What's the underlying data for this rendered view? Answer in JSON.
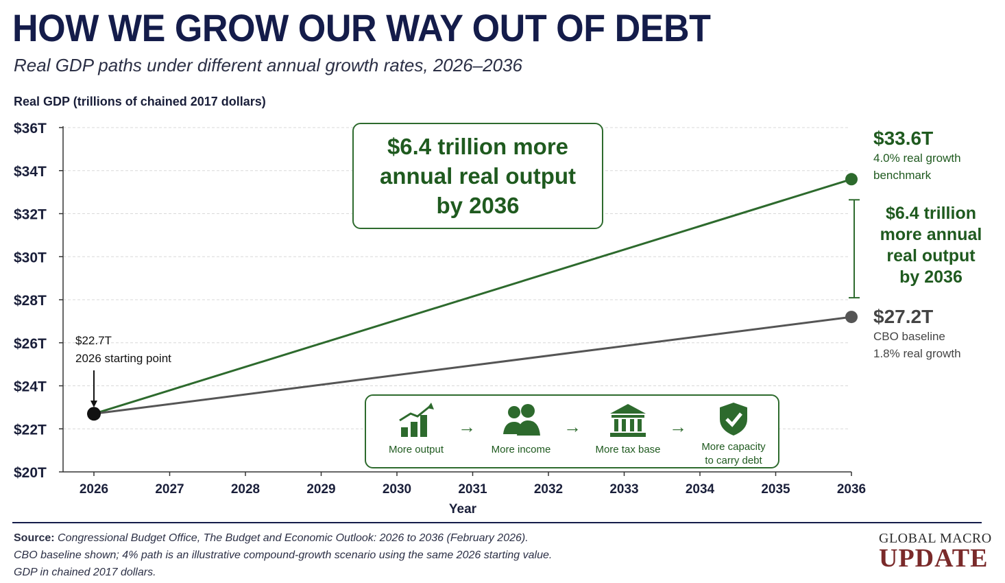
{
  "header": {
    "title": "HOW WE GROW OUR WAY OUT OF DEBT",
    "subtitle": "Real GDP paths under different annual growth rates, 2026–2036"
  },
  "chart_data": {
    "type": "line",
    "title": "HOW WE GROW OUR WAY OUT OF DEBT",
    "subtitle": "Real GDP paths under different annual growth rates, 2026–2036",
    "ylabel": "Real GDP (trillions of chained 2017 dollars)",
    "xlabel": "Year",
    "x": [
      2026,
      2027,
      2028,
      2029,
      2030,
      2031,
      2032,
      2033,
      2034,
      2035,
      2036
    ],
    "xlim": [
      2026,
      2036
    ],
    "ylim": [
      20,
      36
    ],
    "yticks": [
      20,
      22,
      24,
      26,
      28,
      30,
      32,
      34,
      36
    ],
    "ytick_labels": [
      "$20T",
      "$22T",
      "$24T",
      "$26T",
      "$28T",
      "$30T",
      "$32T",
      "$34T",
      "$36T"
    ],
    "grid": true,
    "series": [
      {
        "name": "4.0% real growth benchmark",
        "color": "#2d6a2d",
        "x": [
          2026,
          2036
        ],
        "values": [
          22.7,
          33.6
        ]
      },
      {
        "name": "CBO baseline 1.8% real growth",
        "color": "#555555",
        "x": [
          2026,
          2036
        ],
        "values": [
          22.7,
          27.2
        ]
      }
    ],
    "annotations": {
      "start_value": "$22.7T",
      "start_text": "2026 starting point",
      "green_end_value": "$33.6T",
      "green_end_text_1": "4.0% real growth",
      "green_end_text_2": "benchmark",
      "gray_end_value": "$27.2T",
      "gray_end_text_1": "CBO baseline",
      "gray_end_text_2": "1.8% real growth",
      "gap_lines": [
        "$6.4 trillion",
        "more annual",
        "real output",
        "by 2036"
      ],
      "callout_lines": [
        "$6.4 trillion more",
        "annual real output",
        "by 2036"
      ]
    }
  },
  "flow": {
    "steps": [
      {
        "label": "More output",
        "icon": "bar-chart-up-icon"
      },
      {
        "label": "More income",
        "icon": "people-icon"
      },
      {
        "label": "More tax base",
        "icon": "bank-icon"
      },
      {
        "label_1": "More capacity",
        "label_2": "to carry debt",
        "icon": "shield-check-icon"
      }
    ],
    "arrow": "→"
  },
  "footer": {
    "source_label": "Source:",
    "source_text": "Congressional Budget Office, The Budget and Economic Outlook: 2026 to 2036 (February 2026).",
    "note_1": "CBO baseline shown; 4% path is an illustrative compound-growth scenario using the same 2026 starting value.",
    "note_2": "GDP in chained 2017 dollars."
  },
  "brand": {
    "line1": "GLOBAL MACRO",
    "line2": "UPDATE"
  },
  "colors": {
    "green": "#2d6a2d",
    "gray": "#555555",
    "navy": "#141c4a",
    "brand_red": "#7a2a2a"
  }
}
